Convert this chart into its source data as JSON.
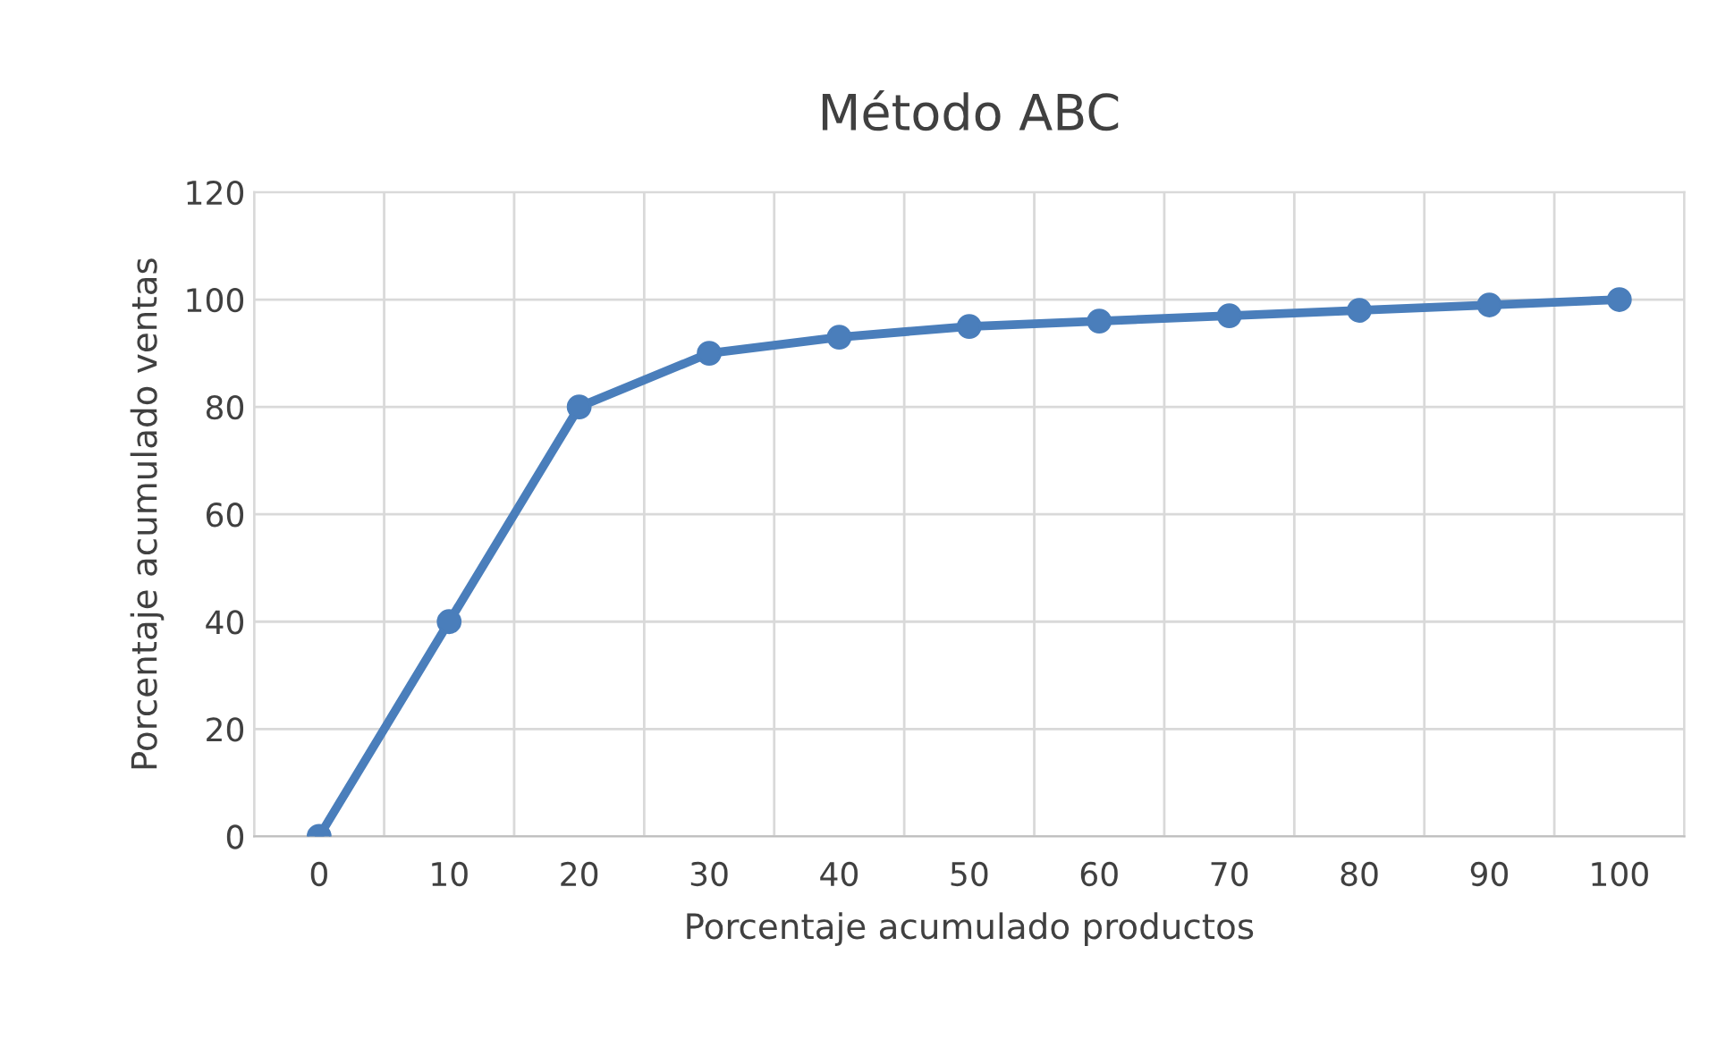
{
  "chart_data": {
    "type": "line",
    "title": "Método ABC",
    "xlabel": "Porcentaje acumulado productos",
    "ylabel": "Porcentaje acumulado ventas",
    "categories": [
      "0",
      "10",
      "20",
      "30",
      "40",
      "50",
      "60",
      "70",
      "80",
      "90",
      "100"
    ],
    "series": [
      {
        "color": "#4a7ebb",
        "values": [
          0,
          40,
          80,
          90,
          93,
          95,
          96,
          97,
          98,
          99,
          100
        ]
      }
    ],
    "ylim": [
      0,
      120
    ],
    "yticks": [
      0,
      20,
      40,
      60,
      80,
      100,
      120
    ],
    "grid": true,
    "marker": "circle",
    "line_style": "solid",
    "legend": false
  }
}
